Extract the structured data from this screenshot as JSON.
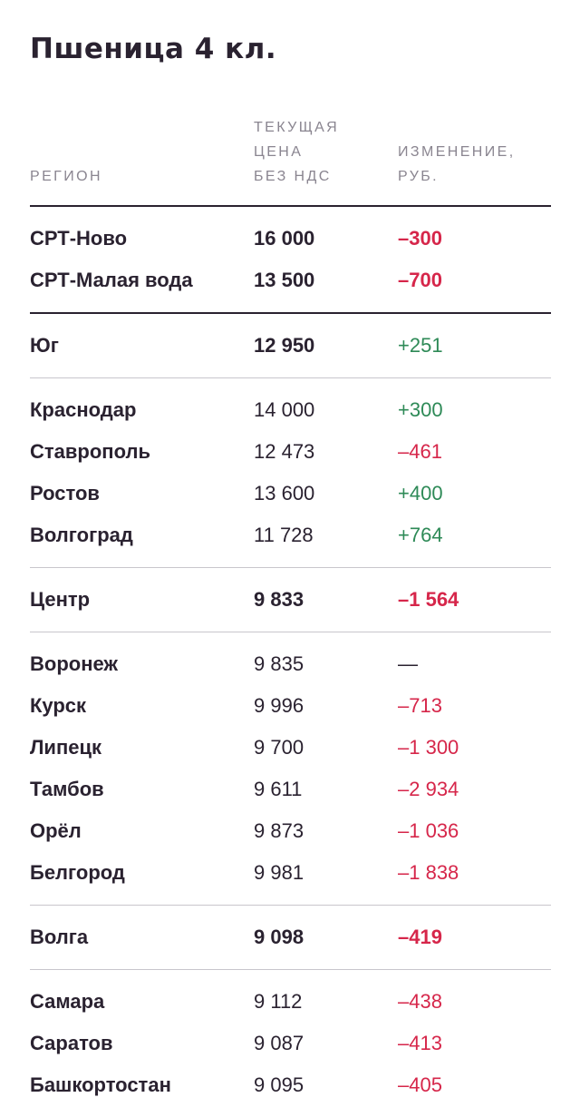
{
  "title": "Пшеница 4 кл.",
  "columns": {
    "region": "РЕГИОН",
    "price": "ТЕКУЩАЯ\nЦЕНА\nБЕЗ НДС",
    "change": "ИЗМЕНЕНИЕ,\nРУБ."
  },
  "colors": {
    "negative": "#d6264a",
    "positive": "#2e8a57",
    "text": "#2a2230",
    "header": "#8a8590"
  },
  "rows": {
    "srt_novo": {
      "region": "СРТ-Ново",
      "price": "16 000",
      "change": "–300"
    },
    "srt_malaya": {
      "region": "СРТ-Малая вода",
      "price": "13 500",
      "change": "–700"
    },
    "yug": {
      "region": "Юг",
      "price": "12 950",
      "change": "+251"
    },
    "krasnodar": {
      "region": "Краснодар",
      "price": "14 000",
      "change": "+300"
    },
    "stavropol": {
      "region": "Ставрополь",
      "price": "12 473",
      "change": "–461"
    },
    "rostov": {
      "region": "Ростов",
      "price": "13 600",
      "change": "+400"
    },
    "volgograd": {
      "region": "Волгоград",
      "price": "11 728",
      "change": "+764"
    },
    "centr": {
      "region": "Центр",
      "price": "9 833",
      "change": "–1 564"
    },
    "voronezh": {
      "region": "Воронеж",
      "price": "9 835",
      "change": "—"
    },
    "kursk": {
      "region": "Курск",
      "price": "9 996",
      "change": "–713"
    },
    "lipetsk": {
      "region": "Липецк",
      "price": "9 700",
      "change": "–1 300"
    },
    "tambov": {
      "region": "Тамбов",
      "price": "9 611",
      "change": "–2 934"
    },
    "orel": {
      "region": "Орёл",
      "price": "9 873",
      "change": "–1 036"
    },
    "belgorod": {
      "region": "Белгород",
      "price": "9 981",
      "change": "–1 838"
    },
    "volga": {
      "region": "Волга",
      "price": "9 098",
      "change": "–419"
    },
    "samara": {
      "region": "Самара",
      "price": "9 112",
      "change": "–438"
    },
    "saratov": {
      "region": "Саратов",
      "price": "9 087",
      "change": "–413"
    },
    "bashkortostan": {
      "region": "Башкортостан",
      "price": "9 095",
      "change": "–405"
    }
  }
}
